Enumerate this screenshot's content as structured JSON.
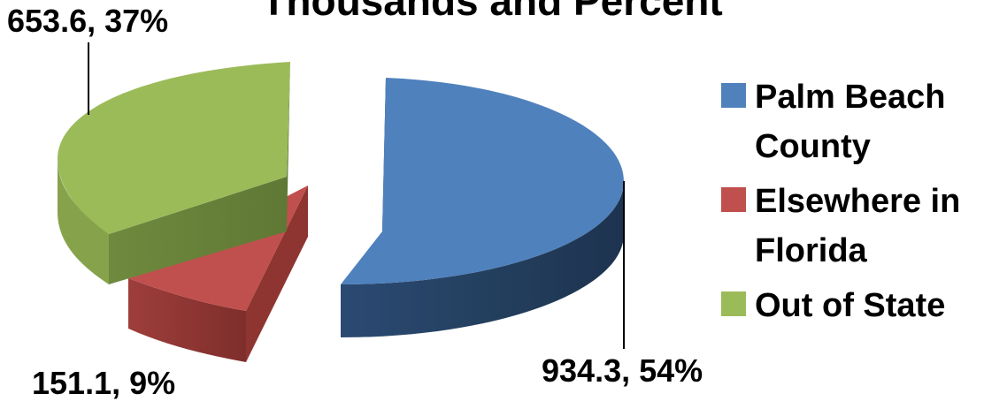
{
  "chart_data": {
    "type": "pie",
    "title": "Thousands and Percent",
    "slices": [
      {
        "name": "Palm Beach County",
        "value": 934.3,
        "percent": 54,
        "label": "934.3, 54%",
        "color": "#4F81BD",
        "exploded": true
      },
      {
        "name": "Elsewhere in Florida",
        "value": 151.1,
        "percent": 9,
        "label": "151.1, 9%",
        "color": "#C0504D",
        "exploded": true
      },
      {
        "name": "Out of State",
        "value": 653.6,
        "percent": 37,
        "label": "653.6, 37%",
        "color": "#9BBB59",
        "exploded": true
      }
    ],
    "legend": {
      "placement": "right",
      "entries": [
        "Palm Beach County",
        "Elsewhere in Florida",
        "Out of State"
      ]
    },
    "style": "3d-exploded"
  }
}
